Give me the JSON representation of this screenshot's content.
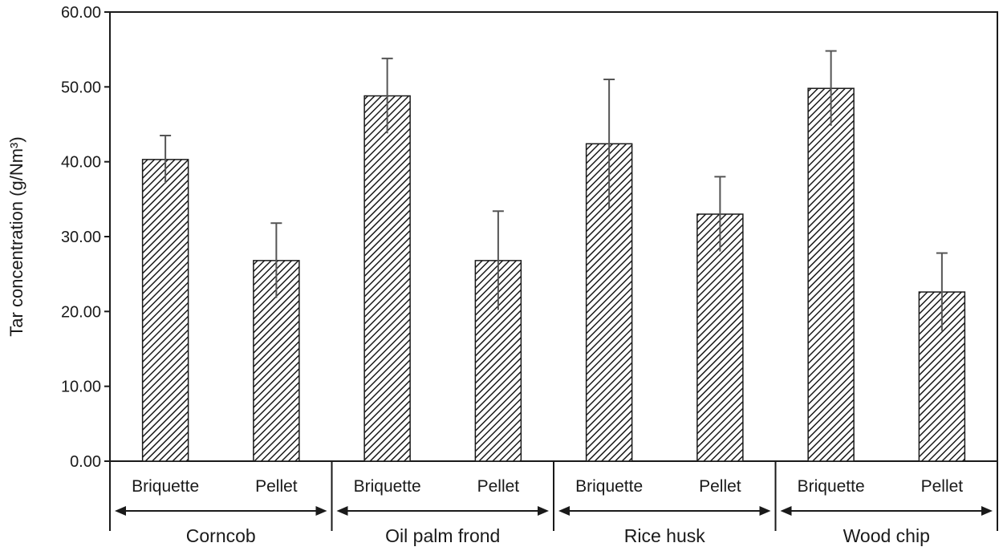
{
  "chart_data": {
    "type": "bar",
    "title": "",
    "ylabel": "Tar concentration (g/Nm³)",
    "xlabel": "",
    "ylim": [
      0,
      60
    ],
    "yticks": [
      "0.00",
      "10.00",
      "20.00",
      "30.00",
      "40.00",
      "50.00",
      "60.00"
    ],
    "grid": false,
    "groups": [
      {
        "name": "Corncob",
        "bars": [
          {
            "label": "Briquette",
            "value": 40.3,
            "error": 3.2
          },
          {
            "label": "Pellet",
            "value": 26.8,
            "error": 5.0
          }
        ]
      },
      {
        "name": "Oil palm frond",
        "bars": [
          {
            "label": "Briquette",
            "value": 48.8,
            "error": 5.0
          },
          {
            "label": "Pellet",
            "value": 26.8,
            "error": 6.6
          }
        ]
      },
      {
        "name": "Rice husk",
        "bars": [
          {
            "label": "Briquette",
            "value": 42.4,
            "error": 8.6
          },
          {
            "label": "Pellet",
            "value": 33.0,
            "error": 5.0
          }
        ]
      },
      {
        "name": "Wood chip",
        "bars": [
          {
            "label": "Briquette",
            "value": 49.8,
            "error": 5.0
          },
          {
            "label": "Pellet",
            "value": 22.6,
            "error": 5.2
          }
        ]
      }
    ],
    "bar_style": "diagonal-hatch",
    "colors": {
      "bar_stroke": "#1a1a1a",
      "hatch": "#1a1a1a",
      "error_bar": "#555555",
      "axis": "#1a1a1a"
    }
  }
}
